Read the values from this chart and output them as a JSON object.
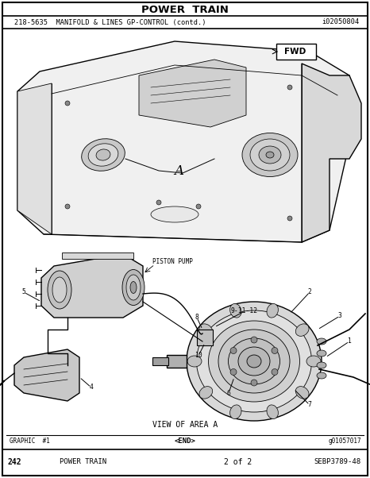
{
  "title": "POWER  TRAIN",
  "subtitle_left": "218-5635  MANIFOLD & LINES GP-CONTROL (contd.)",
  "subtitle_right": "i02050804",
  "bg_color": "#ffffff",
  "border_color": "#000000",
  "footer_left": "GRAPHIC  #1",
  "footer_center": "<END>",
  "footer_right": "g01057017",
  "page_left": "242",
  "page_center_left": "POWER TRAIN",
  "page_center_right": "2 of 2",
  "page_right": "SEBP3789-48",
  "label_A": "A",
  "label_FWD": "FWD",
  "label_piston_pump": "PISTON PUMP",
  "label_view": "VIEW OF AREA A",
  "line_color": "#000000",
  "text_color": "#000000",
  "light_gray": "#cccccc",
  "mid_gray": "#aaaaaa"
}
